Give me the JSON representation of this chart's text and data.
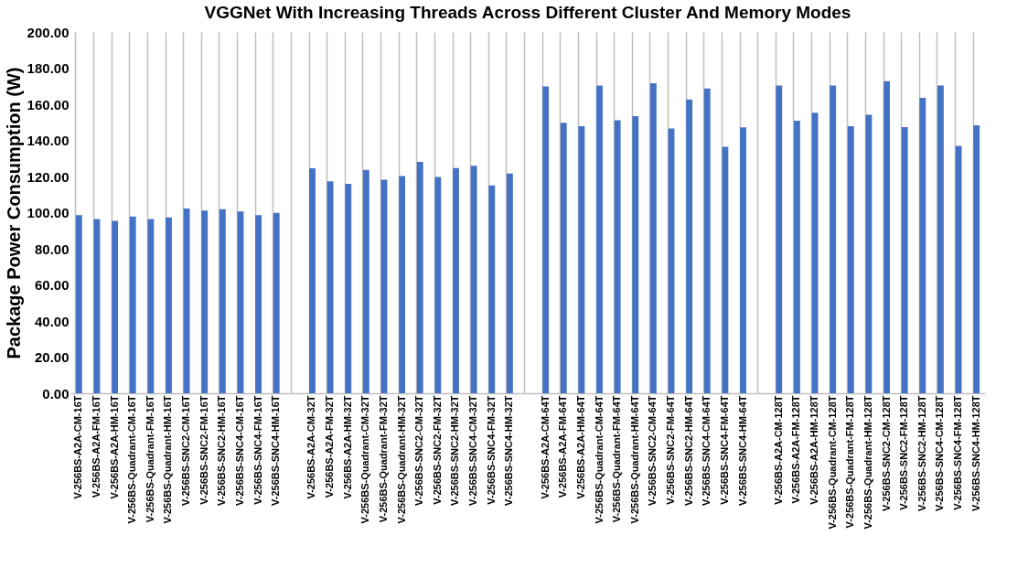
{
  "chart_data": {
    "type": "bar",
    "title": "VGGNet With Increasing Threads Across Different Cluster And Memory Modes",
    "ylabel": "Package Power Consumption (W)",
    "categories": [
      "V-256BS-A2A-CM-16T",
      "V-256BS-A2A-FM-16T",
      "V-256BS-A2A-HM-16T",
      "V-256BS-Quadrant-CM-16T",
      "V-256BS-Quadrant-FM-16T",
      "V-256BS-Quadrant-HM-16T",
      "V-256BS-SNC2-CM-16T",
      "V-256BS-SNC2-FM-16T",
      "V-256BS-SNC2-HM-16T",
      "V-256BS-SNC4-CM-16T",
      "V-256BS-SNC4-FM-16T",
      "V-256BS-SNC4-HM-16T",
      null,
      "V-256BS-A2A-CM-32T",
      "V-256BS-A2A-FM-32T",
      "V-256BS-A2A-HM-32T",
      "V-256BS-Quadrant-CM-32T",
      "V-256BS-Quadrant-FM-32T",
      "V-256BS-Quadrant-HM-32T",
      "V-256BS-SNC2-CM-32T",
      "V-256BS-SNC2-FM-32T",
      "V-256BS-SNC2-HM-32T",
      "V-256BS-SNC4-CM-32T",
      "V-256BS-SNC4-FM-32T",
      "V-256BS-SNC4-HM-32T",
      null,
      "V-256BS-A2A-CM-64T",
      "V-256BS-A2A-FM-64T",
      "V-256BS-A2A-HM-64T",
      "V-256BS-Quadrant-CM-64T",
      "V-256BS-Quadrant-FM-64T",
      "V-256BS-Quadrant-HM-64T",
      "V-256BS-SNC2-CM-64T",
      "V-256BS-SNC2-FM-64T",
      "V-256BS-SNC2-HM-64T",
      "V-256BS-SNC4-CM-64T",
      "V-256BS-SNC4-FM-64T",
      "V-256BS-SNC4-HM-64T",
      null,
      "V-256BS-A2A-CM-128T",
      "V-256BS-A2A-FM-128T",
      "V-256BS-A2A-HM-128T",
      "V-256BS-Quadrant-CM-128T",
      "V-256BS-Quadrant-FM-128T",
      "V-256BS-Quadrant-HM-128T",
      "V-256BS-SNC2-CM-128T",
      "V-256BS-SNC2-FM-128T",
      "V-256BS-SNC2-HM-128T",
      "V-256BS-SNC4-CM-128T",
      "V-256BS-SNC4-FM-128T",
      "V-256BS-SNC4-HM-128T"
    ],
    "values": [
      98.6,
      96.5,
      95.4,
      97.8,
      96.5,
      97.3,
      102.3,
      101.2,
      101.9,
      100.6,
      98.6,
      99.9,
      null,
      124.5,
      117.4,
      116.0,
      123.7,
      118.2,
      120.3,
      128.1,
      119.8,
      124.7,
      126.0,
      115.1,
      121.6,
      null,
      169.9,
      149.8,
      147.9,
      170.4,
      151.1,
      153.4,
      171.7,
      146.6,
      162.6,
      168.7,
      136.4,
      147.2,
      null,
      170.4,
      150.9,
      155.3,
      170.4,
      147.9,
      154.2,
      172.8,
      147.4,
      163.6,
      170.4,
      137.0,
      148.3
    ],
    "color": "#4472c4",
    "ylim": [
      0,
      200
    ],
    "yticks": [
      {
        "value": 0,
        "label": "0.00"
      },
      {
        "value": 20,
        "label": "20.00"
      },
      {
        "value": 40,
        "label": "40.00"
      },
      {
        "value": 60,
        "label": "60.00"
      },
      {
        "value": 80,
        "label": "80.00"
      },
      {
        "value": 100,
        "label": "100.00"
      },
      {
        "value": 120,
        "label": "120.00"
      },
      {
        "value": 140,
        "label": "140.00"
      },
      {
        "value": 160,
        "label": "160.00"
      },
      {
        "value": 180,
        "label": "180.00"
      },
      {
        "value": 200,
        "label": "200.00"
      }
    ],
    "grid": "x"
  }
}
